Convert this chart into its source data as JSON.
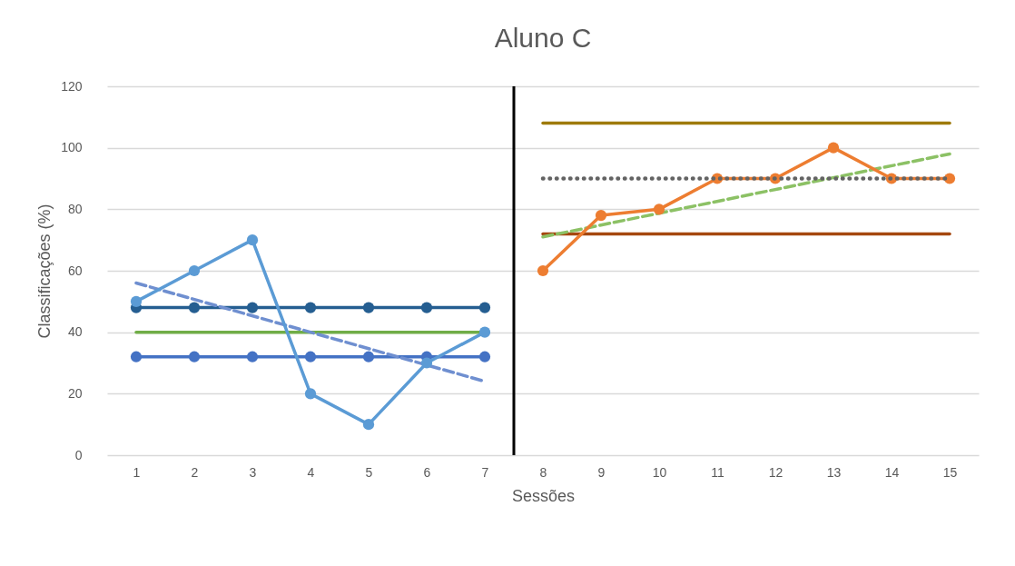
{
  "chart_data": {
    "type": "line",
    "title": "Aluno C",
    "xlabel": "Sessões",
    "ylabel": "Classificações (%)",
    "xlim": [
      0.5,
      15.5
    ],
    "xticks": [
      1,
      2,
      3,
      4,
      5,
      6,
      7,
      8,
      9,
      10,
      11,
      12,
      13,
      14,
      15
    ],
    "ylim": [
      0,
      120
    ],
    "yticks": [
      0,
      20,
      40,
      60,
      80,
      100,
      120
    ],
    "grid": "y",
    "ref_lines": [
      {
        "axis": "x",
        "value": 7.5,
        "color": "#000000"
      }
    ],
    "series": [
      {
        "x": [
          1,
          2,
          3,
          4,
          5,
          6,
          7
        ],
        "values": [
          48,
          48,
          48,
          48,
          48,
          48,
          48
        ],
        "color": "#255e91",
        "marker": "circle",
        "line_style": "solid"
      },
      {
        "x": [
          1,
          7
        ],
        "values": [
          40,
          40
        ],
        "color": "#70ad47",
        "marker": "none",
        "line_style": "solid"
      },
      {
        "x": [
          1,
          2,
          3,
          4,
          5,
          6,
          7
        ],
        "values": [
          32,
          32,
          32,
          32,
          32,
          32,
          32
        ],
        "color": "#4472c4",
        "marker": "circle",
        "line_style": "solid"
      },
      {
        "x": [
          1,
          7
        ],
        "values": [
          56,
          24
        ],
        "color": "#6f8fd0",
        "marker": "none",
        "line_style": "dashed"
      },
      {
        "x": [
          1,
          2,
          3,
          4,
          5,
          6,
          7
        ],
        "values": [
          50,
          60,
          70,
          20,
          10,
          30,
          40
        ],
        "color": "#5b9bd5",
        "marker": "circle",
        "line_style": "solid"
      },
      {
        "x": [
          8,
          15
        ],
        "values": [
          108,
          108
        ],
        "color": "#9e7a0a",
        "marker": "none",
        "line_style": "solid"
      },
      {
        "x": [
          8,
          15
        ],
        "values": [
          72,
          72
        ],
        "color": "#a5470f",
        "marker": "none",
        "line_style": "solid"
      },
      {
        "x": [
          8,
          15
        ],
        "values": [
          71,
          98
        ],
        "color": "#8cc165",
        "marker": "none",
        "line_style": "dashed"
      },
      {
        "x": [
          8,
          9,
          10,
          11,
          12,
          13,
          14,
          15
        ],
        "values": [
          60,
          78,
          80,
          90,
          90,
          100,
          90,
          90
        ],
        "color": "#ed7d31",
        "marker": "circle",
        "line_style": "solid"
      },
      {
        "x": [
          8,
          15
        ],
        "values": [
          90,
          90
        ],
        "color": "#636363",
        "marker": "none",
        "line_style": "dotted"
      }
    ]
  }
}
